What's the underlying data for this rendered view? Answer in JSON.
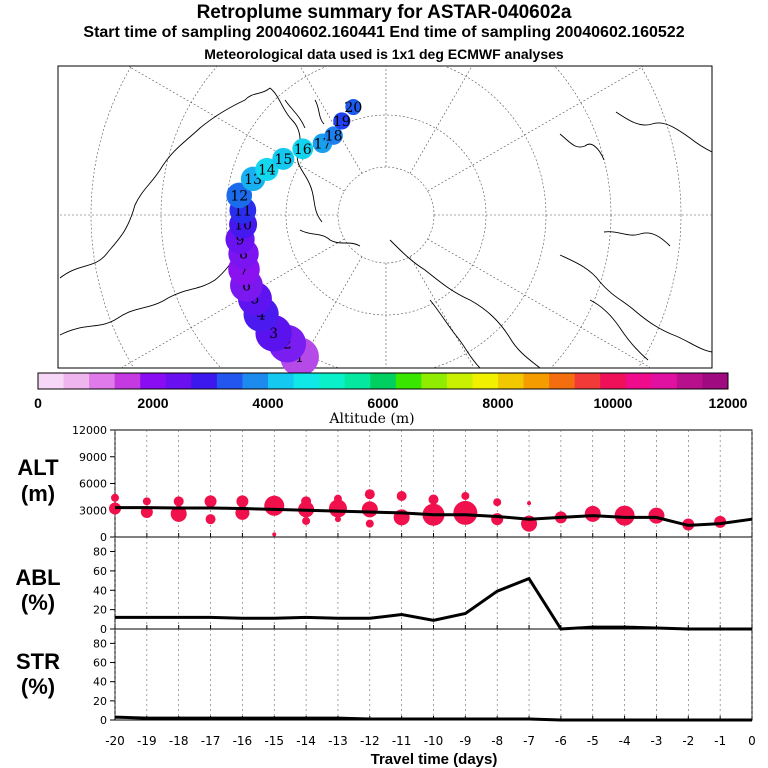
{
  "header": {
    "title": "Retroplume summary for ASTAR-040602a",
    "sampling": "Start time of sampling 20040602.160441     End time of sampling 20040602.160522",
    "met": "Meteorological data used is 1x1 deg ECMWF analyses"
  },
  "colors": {
    "plume": [
      "#f7d7f7",
      "#efb5ef",
      "#e07aea",
      "#c43ae0",
      "#8a0cf2",
      "#6a10f0",
      "#3d18ee",
      "#2356ee",
      "#1d8aee",
      "#14c8f0",
      "#10e8e8",
      "#0af0c8",
      "#04e8a0",
      "#00d060",
      "#38e600",
      "#90ec00",
      "#c8f000",
      "#f0f000",
      "#f2c800",
      "#f49c00",
      "#f46e10",
      "#f23a38",
      "#f0105a",
      "#f00a8c",
      "#e010a0",
      "#b8108c",
      "#a00a80"
    ],
    "dots": "#f0104c"
  },
  "map": {
    "markers": [
      {
        "label": "1",
        "value": 1,
        "lon": 60,
        "lat": 55,
        "color": "#b54ae8"
      },
      {
        "label": "2",
        "value": 2,
        "lon": 66,
        "lat": 56,
        "color": "#7a1df0"
      },
      {
        "label": "3",
        "value": 3,
        "lon": 72,
        "lat": 56,
        "color": "#5a12ef"
      },
      {
        "label": "4",
        "value": 4,
        "lon": 80,
        "lat": 57,
        "color": "#4a1aef"
      },
      {
        "label": "5",
        "value": 5,
        "lon": 86,
        "lat": 58,
        "color": "#5d14f0"
      },
      {
        "label": "6",
        "value": 6,
        "lon": 92,
        "lat": 58,
        "color": "#7a18ef"
      },
      {
        "label": "7",
        "value": 7,
        "lon": 98,
        "lat": 59,
        "color": "#8a12f0"
      },
      {
        "label": "8",
        "value": 8,
        "lon": 104,
        "lat": 60,
        "color": "#7a14f0"
      },
      {
        "label": "9",
        "value": 9,
        "lon": 110,
        "lat": 60,
        "color": "#6a12ef"
      },
      {
        "label": "10",
        "value": 10,
        "lon": 116,
        "lat": 61,
        "color": "#4418ee"
      },
      {
        "label": "11",
        "value": 11,
        "lon": 122,
        "lat": 61,
        "color": "#2a2cee"
      },
      {
        "label": "12",
        "value": 12,
        "lon": 128,
        "lat": 60,
        "color": "#1a6ced"
      },
      {
        "label": "13",
        "value": 13,
        "lon": 136,
        "lat": 62,
        "color": "#18b0f0"
      },
      {
        "label": "14",
        "value": 14,
        "lon": 142,
        "lat": 64,
        "color": "#14d8f0"
      },
      {
        "label": "15",
        "value": 15,
        "lon": 150,
        "lat": 66,
        "color": "#14c8f0"
      },
      {
        "label": "16",
        "value": 16,
        "lon": 160,
        "lat": 68,
        "color": "#12d4f0"
      },
      {
        "label": "17",
        "value": 17,
        "lon": 170,
        "lat": 70,
        "color": "#18a0ee"
      },
      {
        "label": "18",
        "value": 18,
        "lon": 178,
        "lat": 70,
        "color": "#1d80ee"
      },
      {
        "label": "19",
        "value": 19,
        "lon": 186,
        "lat": 68,
        "color": "#2340ee"
      },
      {
        "label": "20",
        "value": 20,
        "lon": 194,
        "lat": 66,
        "color": "#1d5aee"
      }
    ]
  },
  "colorbar": {
    "ticks": [
      "0",
      "2000",
      "4000",
      "6000",
      "8000",
      "10000",
      "12000"
    ],
    "label": "Altitude (m)"
  },
  "panels": {
    "alt": {
      "label1": "ALT",
      "label2": "(m)",
      "yticks": [
        "0",
        "3000",
        "6000",
        "9000",
        "12000"
      ]
    },
    "abl": {
      "label1": "ABL",
      "label2": "(%)",
      "yticks": [
        "0",
        "20",
        "40",
        "60",
        "80"
      ]
    },
    "str": {
      "label1": "STR",
      "label2": "(%)",
      "yticks": [
        "0",
        "20",
        "40",
        "60",
        "80"
      ]
    },
    "xticks": [
      "-20",
      "-19",
      "-18",
      "-17",
      "-16",
      "-15",
      "-14",
      "-13",
      "-12",
      "-11",
      "-10",
      "-9",
      "-8",
      "-7",
      "-6",
      "-5",
      "-4",
      "-3",
      "-2",
      "-1",
      "0"
    ],
    "xlabel": "Travel time (days)"
  },
  "chart_data": [
    {
      "type": "line",
      "title": "ALT",
      "ylabel": "ALT (m)",
      "xlabel": "Travel time (days)",
      "xlim": [
        -20,
        0
      ],
      "ylim": [
        0,
        12000
      ],
      "series": [
        {
          "name": "mean altitude",
          "x": [
            -20,
            -19,
            -18,
            -17,
            -16,
            -15,
            -14,
            -13,
            -12,
            -11,
            -10,
            -9,
            -8,
            -7,
            -6,
            -5,
            -4,
            -3,
            -2,
            -1,
            0
          ],
          "values": [
            3300,
            3300,
            3250,
            3250,
            3200,
            3100,
            3000,
            2900,
            2800,
            2700,
            2500,
            2500,
            2300,
            2000,
            2200,
            2400,
            2200,
            2200,
            1300,
            1500,
            2000
          ]
        },
        {
          "name": "plume cluster altitudes",
          "x": [
            -20,
            -20,
            -19,
            -19,
            -18,
            -18,
            -17,
            -17,
            -16,
            -16,
            -15,
            -15,
            -15,
            -14,
            -14,
            -14,
            -13,
            -13,
            -13,
            -12,
            -12,
            -12,
            -11,
            -11,
            -10,
            -10,
            -9,
            -9,
            -9,
            -8,
            -8,
            -7,
            -7,
            -6,
            -5,
            -4,
            -3,
            -2,
            -1
          ],
          "values": [
            4400,
            3200,
            4000,
            2800,
            4000,
            2600,
            4000,
            2000,
            4000,
            2700,
            4100,
            3500,
            300,
            4000,
            3100,
            1800,
            4300,
            3200,
            2000,
            4800,
            3100,
            1500,
            4600,
            2200,
            4200,
            2500,
            4600,
            2700,
            2800,
            3900,
            2000,
            3800,
            1500,
            2200,
            2600,
            2400,
            2400,
            1400,
            1700
          ],
          "sizes": [
            4,
            6,
            4,
            6,
            5,
            8,
            6,
            5,
            6,
            7,
            5,
            10,
            2,
            5,
            8,
            4,
            4,
            9,
            3,
            5,
            8,
            4,
            5,
            8,
            5,
            11,
            4,
            12,
            6,
            4,
            6,
            2,
            8,
            6,
            8,
            10,
            8,
            6,
            6
          ]
        }
      ]
    },
    {
      "type": "line",
      "title": "ABL",
      "ylabel": "ABL (%)",
      "xlabel": "Travel time (days)",
      "xlim": [
        -20,
        0
      ],
      "ylim": [
        0,
        95
      ],
      "series": [
        {
          "name": "ABL fraction",
          "x": [
            -20,
            -19,
            -18,
            -17,
            -16,
            -15,
            -14,
            -13,
            -12,
            -11,
            -10,
            -9,
            -8,
            -7,
            -6,
            -5,
            -4,
            -3,
            -2,
            -1,
            0
          ],
          "values": [
            12,
            12,
            12,
            12,
            11,
            11,
            12,
            11,
            11,
            15,
            9,
            16,
            39,
            52,
            0,
            2,
            2,
            1,
            0,
            0,
            0
          ]
        }
      ]
    },
    {
      "type": "line",
      "title": "STR",
      "ylabel": "STR (%)",
      "xlabel": "Travel time (days)",
      "xlim": [
        -20,
        0
      ],
      "ylim": [
        0,
        95
      ],
      "series": [
        {
          "name": "stratospheric fraction",
          "x": [
            -20,
            -19,
            -18,
            -17,
            -16,
            -15,
            -14,
            -13,
            -12,
            -11,
            -10,
            -9,
            -8,
            -7,
            -6,
            -5,
            -4,
            -3,
            -2,
            -1,
            0
          ],
          "values": [
            3,
            2,
            2,
            2,
            2,
            2,
            2,
            2,
            1,
            1,
            1,
            1,
            1,
            1,
            0,
            0,
            0,
            0,
            0,
            0,
            0
          ]
        }
      ]
    }
  ]
}
